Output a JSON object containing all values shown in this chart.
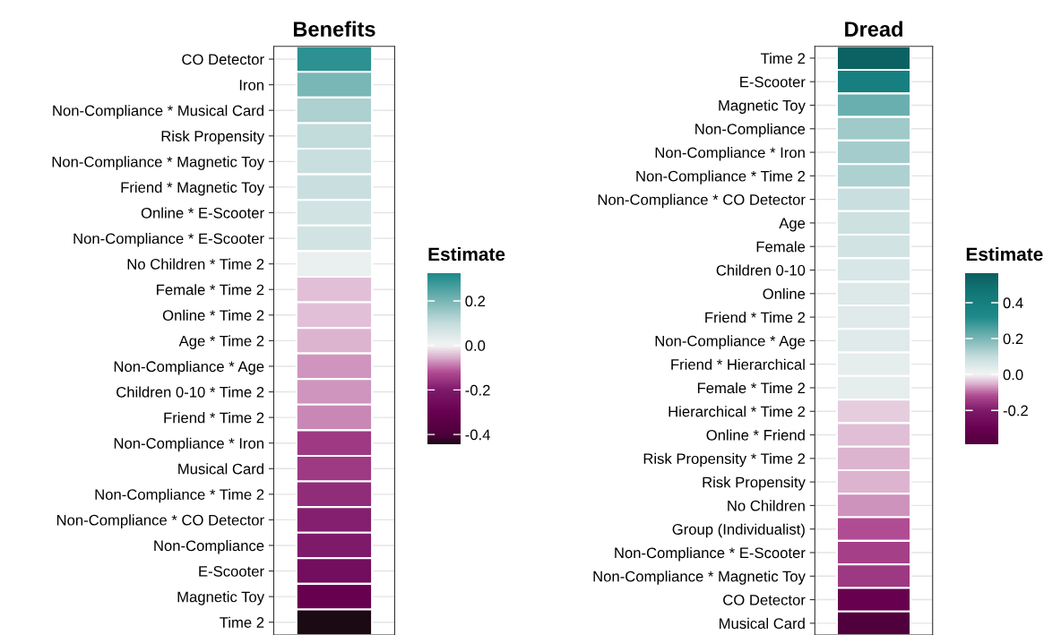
{
  "chart_data": [
    {
      "type": "heatmap",
      "title": "Benefits",
      "clabel": "Estimate",
      "categories": [
        null
      ],
      "grid": "y",
      "tick_labels": "y",
      "y_categories": [
        "CO Detector",
        "Iron",
        "Non-Compliance * Musical Card",
        "Risk Propensity",
        "Non-Compliance * Magnetic Toy",
        "Friend * Magnetic Toy",
        "Online * E-Scooter",
        "Non-Compliance * E-Scooter",
        "No Children * Time 2",
        "Female * Time 2",
        "Online * Time 2",
        "Age * Time 2",
        "Non-Compliance * Age",
        "Children 0-10 * Time 2",
        "Friend * Time 2",
        "Non-Compliance * Iron",
        "Musical Card",
        "Non-Compliance * Time 2",
        "Non-Compliance * CO Detector",
        "Non-Compliance",
        "E-Scooter",
        "Magnetic Toy",
        "Time 2"
      ],
      "cells": [
        [
          0.3
        ],
        [
          0.2
        ],
        [
          0.13
        ],
        [
          0.1
        ],
        [
          0.09
        ],
        [
          0.09
        ],
        [
          0.07
        ],
        [
          0.07
        ],
        [
          0.02
        ],
        [
          -0.04
        ],
        [
          -0.04
        ],
        [
          -0.05
        ],
        [
          -0.07
        ],
        [
          -0.07
        ],
        [
          -0.08
        ],
        [
          -0.15
        ],
        [
          -0.15
        ],
        [
          -0.17
        ],
        [
          -0.19
        ],
        [
          -0.2
        ],
        [
          -0.25
        ],
        [
          -0.3
        ],
        [
          -0.44
        ]
      ],
      "clim": [
        -0.445,
        0.325
      ],
      "cticks": [
        -0.4,
        -0.2,
        {
          "value": 0,
          "label": "0.0"
        },
        0.2
      ]
    },
    {
      "type": "heatmap",
      "title": "Dread",
      "clabel": "Estimate",
      "categories": [
        null
      ],
      "grid": "y",
      "tick_labels": "y",
      "y_categories": [
        "Time 2",
        "E-Scooter",
        "Magnetic Toy",
        "Non-Compliance",
        "Non-Compliance * Iron",
        "Non-Compliance * Time 2",
        "Non-Compliance * CO Detector",
        "Age",
        "Female",
        "Children 0-10",
        "Online",
        "Friend * Time 2",
        "Non-Compliance * Age",
        "Friend * Hierarchical",
        "Female * Time 2",
        "Hierarchical * Time 2",
        "Online * Friend",
        "Risk Propensity * Time 2",
        "Risk Propensity",
        "No Children",
        "Group (Individualist)",
        "Non-Compliance * E-Scooter",
        "Non-Compliance * Magnetic Toy",
        "CO Detector",
        "Musical Card"
      ],
      "cells": [
        [
          0.55
        ],
        [
          0.4
        ],
        [
          0.22
        ],
        [
          0.15
        ],
        [
          0.14
        ],
        [
          0.13
        ],
        [
          0.09
        ],
        [
          0.08
        ],
        [
          0.07
        ],
        [
          0.06
        ],
        [
          0.05
        ],
        [
          0.04
        ],
        [
          0.04
        ],
        [
          0.03
        ],
        [
          0.03
        ],
        [
          -0.03
        ],
        [
          -0.04
        ],
        [
          -0.05
        ],
        [
          -0.05
        ],
        [
          -0.07
        ],
        [
          -0.12
        ],
        [
          -0.14
        ],
        [
          -0.15
        ],
        [
          -0.3
        ],
        [
          -0.38
        ]
      ],
      "clim": [
        -0.39,
        0.565
      ],
      "cticks": [
        -0.2,
        {
          "value": 0,
          "label": "0.0"
        },
        0.2,
        0.4
      ]
    }
  ]
}
